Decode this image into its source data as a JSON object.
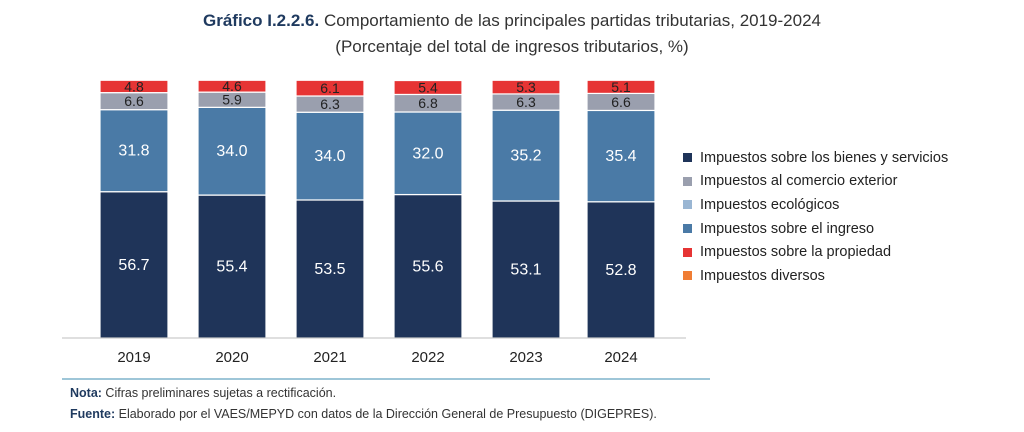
{
  "header": {
    "title_lead": "Gráfico I.2.2.6.",
    "title_rest": " Comportamiento de las principales partidas tributarias, 2019-2024",
    "subtitle": "(Porcentaje del total de ingresos tributarios, %)"
  },
  "chart_data": {
    "type": "bar",
    "stacked": true,
    "categories": [
      "2019",
      "2020",
      "2021",
      "2022",
      "2023",
      "2024"
    ],
    "ylim": [
      0,
      100
    ],
    "grid": false,
    "legend_position": "right",
    "series": [
      {
        "name": "Impuestos sobre los bienes y servicios",
        "color": "#1f3459",
        "values": [
          56.7,
          55.4,
          53.5,
          55.6,
          53.1,
          52.8
        ],
        "label_color": "#ffffff"
      },
      {
        "name": "Impuestos sobre el ingreso",
        "color": "#4a7aa6",
        "values": [
          31.8,
          34.0,
          34.0,
          32.0,
          35.2,
          35.4
        ],
        "label_color": "#ffffff"
      },
      {
        "name": "Impuestos al comercio exterior",
        "color": "#9a9fae",
        "values": [
          6.6,
          5.9,
          6.3,
          6.8,
          6.3,
          6.6
        ],
        "label_color": "#222222"
      },
      {
        "name": "Impuestos sobre la propiedad",
        "color": "#e63434",
        "values": [
          4.8,
          4.6,
          6.1,
          5.4,
          5.3,
          5.1
        ],
        "label_color": "#222222"
      }
    ],
    "legend": [
      {
        "name": "Impuestos sobre los bienes y servicios",
        "color": "#1f3459"
      },
      {
        "name": "Impuestos al comercio exterior",
        "color": "#9a9fae"
      },
      {
        "name": "Impuestos ecológicos",
        "color": "#9ab6d3"
      },
      {
        "name": "Impuestos sobre el ingreso",
        "color": "#4a7aa6"
      },
      {
        "name": "Impuestos sobre la propiedad",
        "color": "#e63434"
      },
      {
        "name": "Impuestos diversos",
        "color": "#f07d34"
      }
    ]
  },
  "footer": {
    "note_label": "Nota:",
    "note_text": " Cifras preliminares sujetas a rectificación.",
    "source_label": "Fuente:",
    "source_text": " Elaborado por el VAES/MEPYD con datos de la Dirección General de Presupuesto (DIGEPRES)."
  }
}
